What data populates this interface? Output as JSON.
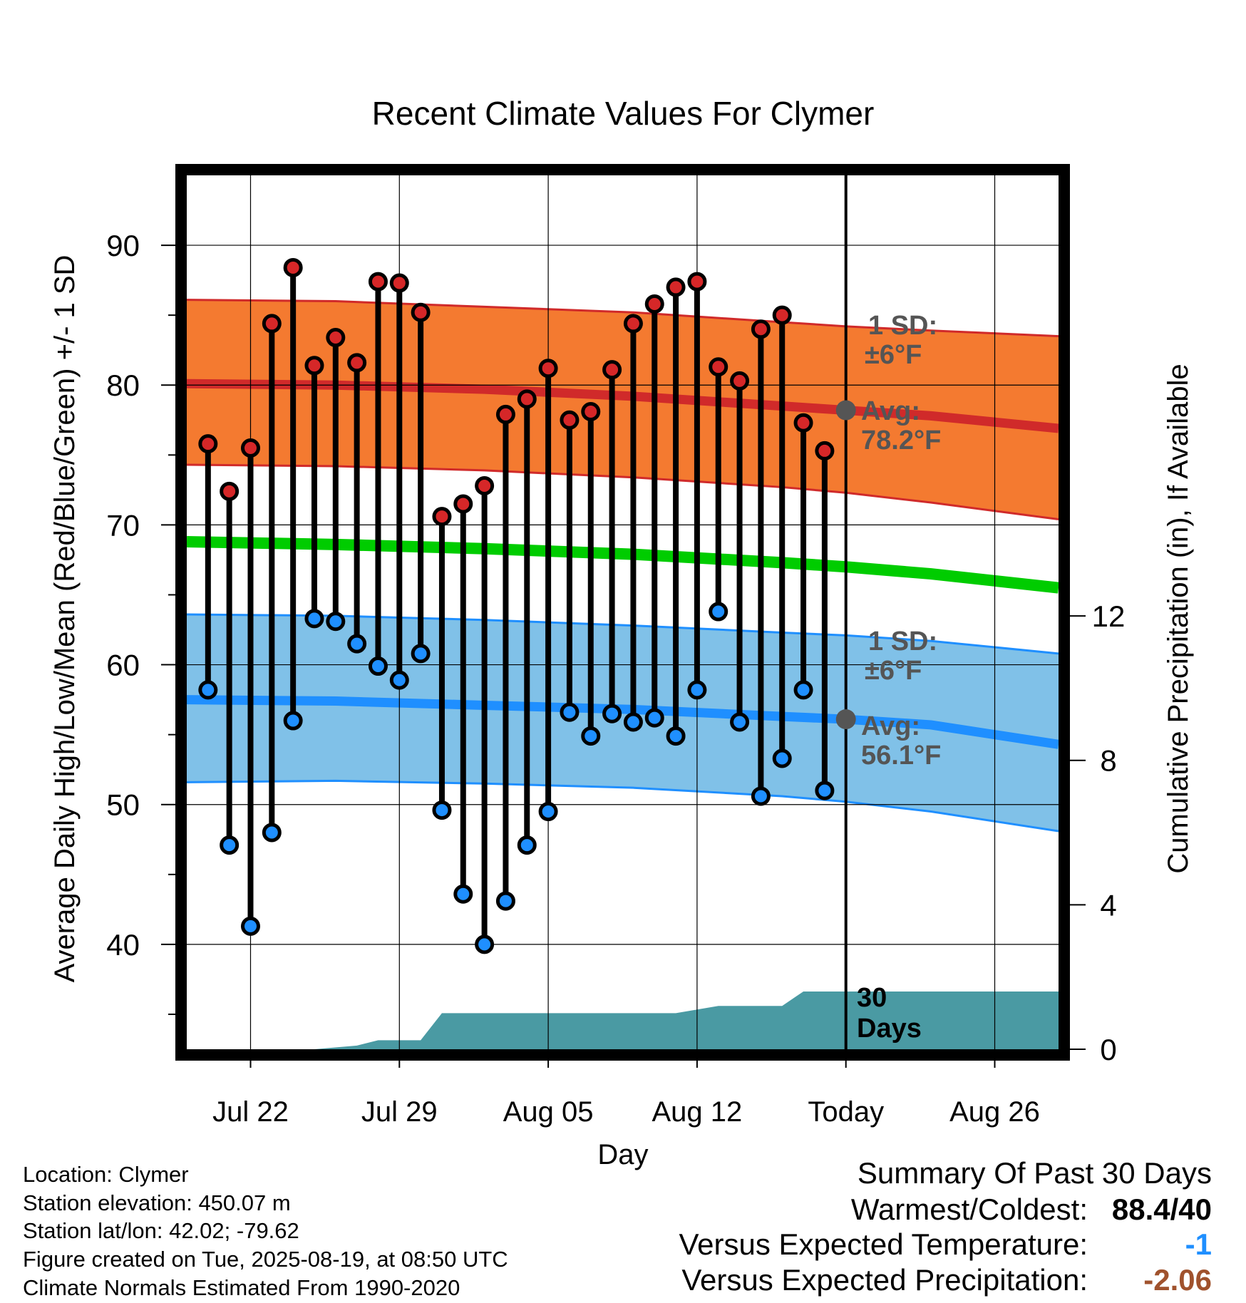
{
  "chart_data": {
    "type": "line",
    "title": "Recent Climate Values For Clymer",
    "xlabel": "Day",
    "ylabel": "Average Daily High/Low/Mean (Red/Blue/Green) +/- 1 SD",
    "y2label": "Cumulative Precipitation (in), If Available",
    "xlim": [
      "2025-07-19",
      "2025-08-29"
    ],
    "ylim": [
      32.5,
      95
    ],
    "y2lim": [
      0,
      24.2
    ],
    "x_ticks": [
      {
        "date": "2025-07-22",
        "label": "Jul 22"
      },
      {
        "date": "2025-07-29",
        "label": "Jul 29"
      },
      {
        "date": "2025-08-05",
        "label": "Aug 05"
      },
      {
        "date": "2025-08-12",
        "label": "Aug 12"
      },
      {
        "date": "2025-08-19",
        "label": "Today"
      },
      {
        "date": "2025-08-26",
        "label": "Aug 26"
      }
    ],
    "y_ticks": [
      40,
      50,
      60,
      70,
      80,
      90
    ],
    "y2_ticks": [
      0,
      4,
      8,
      12
    ],
    "grid": true,
    "today": "2025-08-19",
    "dates": [
      "2025-07-20",
      "2025-07-21",
      "2025-07-22",
      "2025-07-23",
      "2025-07-24",
      "2025-07-25",
      "2025-07-26",
      "2025-07-27",
      "2025-07-28",
      "2025-07-29",
      "2025-07-30",
      "2025-07-31",
      "2025-08-01",
      "2025-08-02",
      "2025-08-03",
      "2025-08-04",
      "2025-08-05",
      "2025-08-06",
      "2025-08-07",
      "2025-08-08",
      "2025-08-09",
      "2025-08-10",
      "2025-08-11",
      "2025-08-12",
      "2025-08-13",
      "2025-08-14",
      "2025-08-15",
      "2025-08-16",
      "2025-08-17",
      "2025-08-18"
    ],
    "series": [
      {
        "name": "High",
        "color": "#d62728",
        "values": [
          75.8,
          72.4,
          75.5,
          84.4,
          88.4,
          81.4,
          83.4,
          81.6,
          87.4,
          87.3,
          85.2,
          70.6,
          71.5,
          72.8,
          77.9,
          79.0,
          81.2,
          77.5,
          78.1,
          81.1,
          84.4,
          85.8,
          87.0,
          87.4,
          81.3,
          80.3,
          84.0,
          85.0,
          77.3,
          75.3
        ]
      },
      {
        "name": "Low",
        "color": "#1f8fff",
        "values": [
          58.2,
          47.1,
          41.3,
          48.0,
          56.0,
          63.3,
          63.1,
          61.5,
          59.9,
          58.9,
          60.8,
          49.6,
          43.6,
          40.0,
          43.1,
          47.1,
          49.5,
          56.6,
          54.9,
          56.5,
          55.9,
          56.2,
          54.9,
          58.2,
          63.8,
          55.9,
          50.6,
          53.3,
          58.2,
          51.0
        ]
      }
    ],
    "normals": {
      "dates": [
        "2025-07-19",
        "2025-07-26",
        "2025-08-02",
        "2025-08-09",
        "2025-08-16",
        "2025-08-19",
        "2025-08-23",
        "2025-08-29"
      ],
      "high_avg": [
        80.1,
        80.0,
        79.7,
        79.2,
        78.5,
        78.2,
        77.8,
        76.9
      ],
      "high_upper": [
        86.1,
        86.0,
        85.6,
        85.2,
        84.5,
        84.2,
        83.9,
        83.5
      ],
      "high_lower": [
        74.3,
        74.2,
        73.9,
        73.4,
        72.7,
        72.3,
        71.6,
        70.4
      ],
      "mean": [
        68.8,
        68.6,
        68.3,
        67.9,
        67.3,
        67.0,
        66.5,
        65.5
      ],
      "low_avg": [
        57.5,
        57.4,
        57.1,
        56.8,
        56.3,
        56.1,
        55.7,
        54.3
      ],
      "low_upper": [
        63.6,
        63.5,
        63.2,
        62.8,
        62.3,
        62.1,
        61.7,
        60.8
      ],
      "low_lower": [
        51.6,
        51.7,
        51.5,
        51.2,
        50.6,
        50.2,
        49.5,
        48.1
      ]
    },
    "precip": {
      "dates": [
        "2025-07-19",
        "2025-07-24",
        "2025-07-25",
        "2025-07-27",
        "2025-07-28",
        "2025-07-29",
        "2025-07-30",
        "2025-07-31",
        "2025-08-01",
        "2025-08-07",
        "2025-08-10",
        "2025-08-11",
        "2025-08-13",
        "2025-08-14",
        "2025-08-16",
        "2025-08-17",
        "2025-08-18",
        "2025-08-19",
        "2025-08-29"
      ],
      "values": [
        0,
        0,
        0,
        0.1,
        0.25,
        0.25,
        0.25,
        1.0,
        1.0,
        1.0,
        1.0,
        1.0,
        1.2,
        1.2,
        1.2,
        1.6,
        1.6,
        1.6,
        1.6
      ]
    },
    "annotations": {
      "high_sd_label": "1 SD:",
      "high_sd_value": "±6°F",
      "high_avg_label": "Avg:",
      "high_avg_value": "78.2°F",
      "high_avg_point": 78.2,
      "low_sd_label": "1 SD:",
      "low_sd_value": "±6°F",
      "low_avg_label": "Avg:",
      "low_avg_value": "56.1°F",
      "low_avg_point": 56.1,
      "days_label_1": "30",
      "days_label_2": "Days"
    },
    "colors": {
      "high_band": "#f47a30",
      "high_avg_line": "#d02a2a",
      "mean_line": "#00cc00",
      "low_band": "#80c1e8",
      "low_avg_line": "#1f8fff",
      "precip_fill": "#4a9aa3",
      "annotation_text": "#555555",
      "today_dot": "#555555"
    }
  },
  "info": {
    "location": "Location: Clymer",
    "elevation": "Station elevation: 450.07 m",
    "latlon": "Station lat/lon: 42.02; -79.62",
    "created": "Figure created on Tue, 2025-08-19, at 08:50 UTC",
    "normals": "Climate Normals Estimated From 1990-2020"
  },
  "summary": {
    "title": "Summary Of Past 30 Days",
    "rows": [
      {
        "label": "Warmest/Coldest:",
        "value": "88.4/40",
        "color": "#000000"
      },
      {
        "label": "Versus Expected Temperature:",
        "value": "-1",
        "color": "#1f8fff"
      },
      {
        "label": "Versus Expected Precipitation:",
        "value": "-2.06",
        "color": "#a0522d"
      }
    ]
  }
}
